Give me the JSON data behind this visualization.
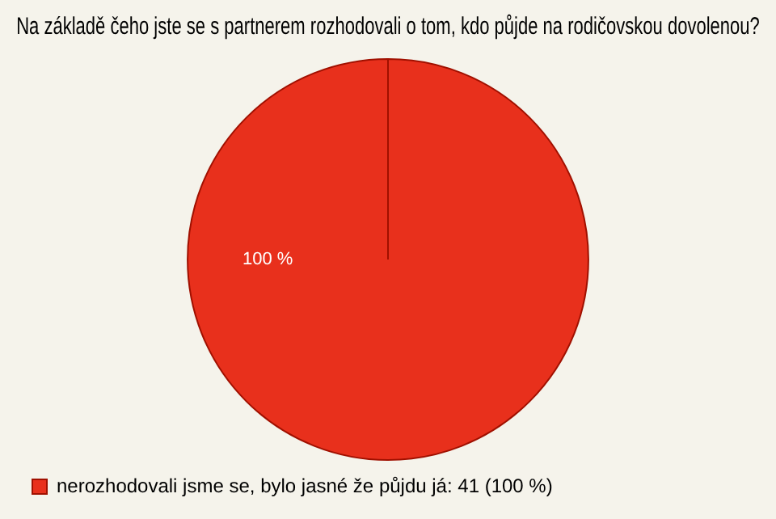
{
  "chart_data": {
    "type": "pie",
    "title": "Na základě čeho jste se s partnerem rozhodovali o tom, kdo půjde na rodičovskou dovolenou?",
    "categories": [
      "nerozhodovali jsme se, bylo jasné že půjdu já: 41 (100 %)"
    ],
    "values": [
      100
    ],
    "value_labels": [
      "100 %"
    ],
    "colors": [
      "#e8301c"
    ],
    "legend": "bottom left"
  }
}
